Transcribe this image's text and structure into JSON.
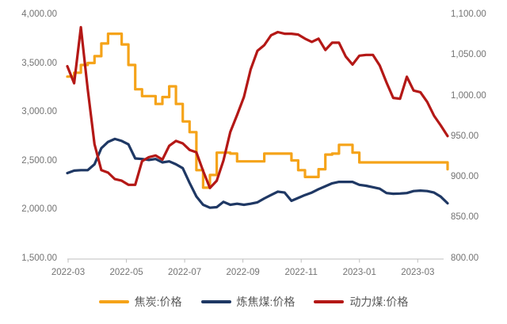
{
  "chart_data": {
    "type": "line",
    "title": "",
    "x": [
      "2022-03-01",
      "2022-03-08",
      "2022-03-15",
      "2022-03-22",
      "2022-03-29",
      "2022-04-05",
      "2022-04-12",
      "2022-04-19",
      "2022-04-26",
      "2022-05-03",
      "2022-05-10",
      "2022-05-17",
      "2022-05-24",
      "2022-05-31",
      "2022-06-07",
      "2022-06-14",
      "2022-06-21",
      "2022-06-28",
      "2022-07-05",
      "2022-07-12",
      "2022-07-19",
      "2022-07-26",
      "2022-08-02",
      "2022-08-09",
      "2022-08-16",
      "2022-08-23",
      "2022-08-30",
      "2022-09-06",
      "2022-09-13",
      "2022-09-20",
      "2022-09-27",
      "2022-10-04",
      "2022-10-11",
      "2022-10-18",
      "2022-10-25",
      "2022-11-01",
      "2022-11-08",
      "2022-11-15",
      "2022-11-22",
      "2022-11-29",
      "2022-12-06",
      "2022-12-13",
      "2022-12-20",
      "2022-12-27",
      "2023-01-03",
      "2023-01-10",
      "2023-01-17",
      "2023-01-24",
      "2023-01-31",
      "2023-02-07",
      "2023-02-14",
      "2023-02-21",
      "2023-02-28",
      "2023-03-07",
      "2023-03-14",
      "2023-03-21",
      "2023-03-28"
    ],
    "series": [
      {
        "name": "焦炭:价格",
        "axis": "left",
        "color": "#F5A319",
        "style": "step",
        "values": [
          3360,
          3400,
          3480,
          3500,
          3570,
          3700,
          3800,
          3800,
          3690,
          3480,
          3230,
          3160,
          3160,
          3080,
          3150,
          3260,
          3080,
          2900,
          2790,
          2400,
          2220,
          2350,
          2580,
          2580,
          2570,
          2490,
          2490,
          2490,
          2490,
          2570,
          2570,
          2570,
          2570,
          2500,
          2400,
          2330,
          2330,
          2410,
          2560,
          2570,
          2660,
          2660,
          2580,
          2480,
          2480,
          2480,
          2480,
          2480,
          2480,
          2480,
          2480,
          2480,
          2480,
          2480,
          2480,
          2480,
          2410
        ]
      },
      {
        "name": "炼焦煤:价格",
        "axis": "left",
        "color": "#1F3864",
        "style": "line",
        "values": [
          2370,
          2395,
          2400,
          2400,
          2460,
          2625,
          2690,
          2720,
          2700,
          2665,
          2520,
          2515,
          2505,
          2515,
          2480,
          2490,
          2460,
          2420,
          2270,
          2130,
          2045,
          2015,
          2020,
          2075,
          2045,
          2055,
          2045,
          2055,
          2070,
          2110,
          2145,
          2180,
          2170,
          2085,
          2115,
          2145,
          2170,
          2205,
          2235,
          2265,
          2280,
          2280,
          2280,
          2250,
          2240,
          2225,
          2210,
          2165,
          2158,
          2160,
          2165,
          2185,
          2190,
          2185,
          2170,
          2128,
          2060
        ]
      },
      {
        "name": "动力煤:价格",
        "axis": "right",
        "color": "#B41816",
        "style": "line",
        "values": [
          1036,
          1015,
          1084,
          1008,
          940,
          908,
          905,
          897,
          895,
          890,
          890,
          919,
          924,
          926,
          921,
          938,
          944,
          941,
          933,
          930,
          907,
          886,
          895,
          920,
          955,
          976,
          998,
          1032,
          1055,
          1062,
          1074,
          1078,
          1076,
          1076,
          1075,
          1070,
          1066,
          1070,
          1056,
          1065,
          1065,
          1048,
          1038,
          1049,
          1050,
          1050,
          1037,
          1016,
          997,
          996,
          1023,
          1006,
          1004,
          992,
          975,
          963,
          950
        ]
      }
    ],
    "left_axis": {
      "min": 1500,
      "max": 4000,
      "tick_step": 500,
      "tick_labels": [
        "4,000.00",
        "3,500.00",
        "3,000.00",
        "2,500.00",
        "2,000.00",
        "1,500.00"
      ]
    },
    "right_axis": {
      "min": 800,
      "max": 1100,
      "tick_step": 50,
      "tick_labels": [
        "1,100.00",
        "1,050.00",
        "1,000.00",
        "950.00",
        "900.00",
        "850.00",
        "800.00"
      ]
    },
    "x_axis": {
      "tick_labels": [
        "2022-03",
        "2022-05",
        "2022-07",
        "2022-09",
        "2022-11",
        "2023-01",
        "2023-03"
      ]
    },
    "legend_position": "bottom",
    "grid": false,
    "colors": {
      "axis_line": "#BFBFBF",
      "tick_text": "#737373",
      "legend_text": "#595959",
      "background": "#FFFFFF"
    }
  }
}
